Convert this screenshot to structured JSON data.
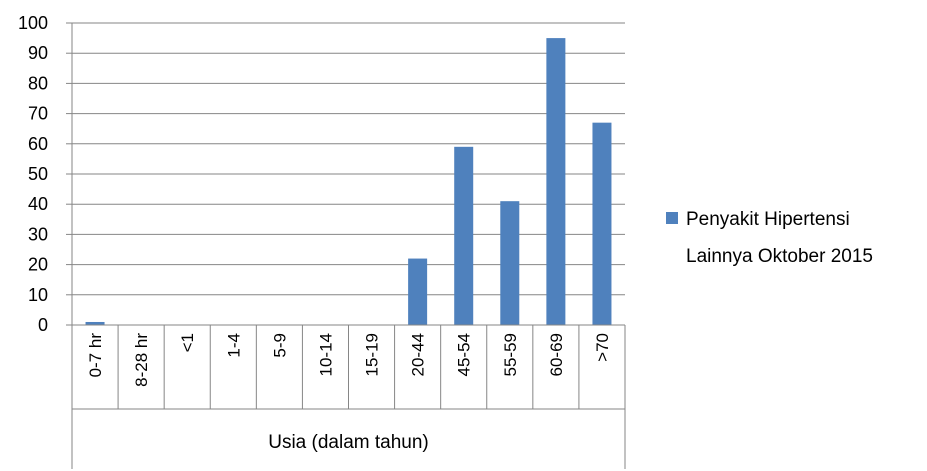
{
  "chart_data": {
    "type": "bar",
    "categories": [
      "0-7 hr",
      "8-28 hr",
      "<1",
      "1-4",
      "5-9",
      "10-14",
      "15-19",
      "20-44",
      "45-54",
      "55-59",
      "60-69",
      ">70"
    ],
    "series": [
      {
        "name": "Penyakit Hipertensi Lainnya Oktober 2015",
        "legend_lines": [
          "Penyakit Hipertensi",
          "Lainnya Oktober 2015"
        ],
        "values": [
          1,
          0,
          0,
          0,
          0,
          0,
          0,
          22,
          59,
          41,
          95,
          67
        ],
        "color": "#4f81bd"
      }
    ],
    "xlabel": "Usia (dalam tahun)",
    "ylabel": "",
    "ylim": [
      0,
      100
    ],
    "yticks": [
      0,
      10,
      20,
      30,
      40,
      50,
      60,
      70,
      80,
      90,
      100
    ],
    "grid": true,
    "legend": "right"
  }
}
